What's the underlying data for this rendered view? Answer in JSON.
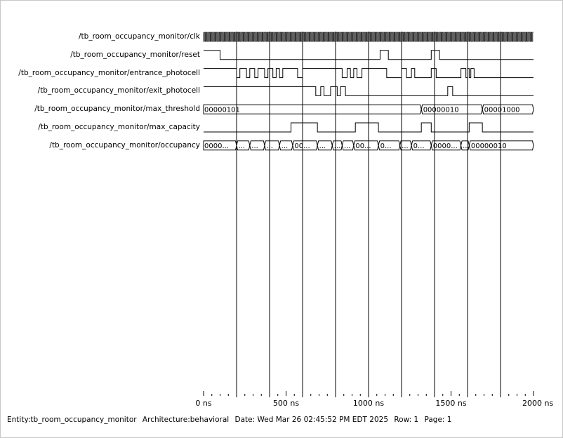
{
  "signals": [
    {
      "name": "/tb_room_occupancy_monitor/clk",
      "type": "clock",
      "period": 10
    },
    {
      "name": "/tb_room_occupancy_monitor/reset",
      "type": "bit",
      "init": 1,
      "edges": [
        100,
        1070,
        1120,
        1380,
        1430
      ]
    },
    {
      "name": "/tb_room_occupancy_monitor/entrance_photocell",
      "type": "bit",
      "init": 1,
      "edges": [
        200,
        220,
        260,
        280,
        310,
        330,
        370,
        390,
        420,
        440,
        460,
        480,
        570,
        600,
        840,
        870,
        890,
        910,
        930,
        960,
        1110,
        1200,
        1230,
        1260,
        1280,
        1380,
        1410,
        1560,
        1590,
        1600,
        1610,
        1620,
        1640
      ]
    },
    {
      "name": "/tb_room_occupancy_monitor/exit_photocell",
      "type": "bit",
      "init": 1,
      "edges": [
        680,
        710,
        730,
        770,
        810,
        830,
        860,
        1480,
        1510
      ]
    },
    {
      "name": "/tb_room_occupancy_monitor/max_threshold",
      "type": "bus",
      "segments": [
        {
          "start": 0,
          "label": "00000101"
        },
        {
          "start": 1320,
          "label": "00000010"
        },
        {
          "start": 1690,
          "label": "00001000"
        }
      ]
    },
    {
      "name": "/tb_room_occupancy_monitor/max_capacity",
      "type": "bit",
      "init": 0,
      "edges": [
        530,
        690,
        920,
        1060,
        1320,
        1380,
        1610,
        1690
      ]
    },
    {
      "name": "/tb_room_occupancy_monitor/occupancy",
      "type": "bus",
      "segments": [
        {
          "start": 0,
          "label": "0000..."
        },
        {
          "start": 200,
          "label": "..."
        },
        {
          "start": 280,
          "label": "..."
        },
        {
          "start": 370,
          "label": "..."
        },
        {
          "start": 460,
          "label": "..."
        },
        {
          "start": 540,
          "label": "00..."
        },
        {
          "start": 690,
          "label": "..."
        },
        {
          "start": 780,
          "label": "..."
        },
        {
          "start": 840,
          "label": "..."
        },
        {
          "start": 910,
          "label": "00..."
        },
        {
          "start": 1060,
          "label": "0..."
        },
        {
          "start": 1190,
          "label": "..."
        },
        {
          "start": 1260,
          "label": "0..."
        },
        {
          "start": 1380,
          "label": "0000..."
        },
        {
          "start": 1560,
          "label": "..."
        },
        {
          "start": 1610,
          "label": "00000010"
        }
      ]
    }
  ],
  "time_axis": {
    "start": 0,
    "end": 2000,
    "unit": "ns",
    "major_step": 500,
    "minor_step": 50,
    "gridline_step": 200,
    "tick_labels": [
      "0 ns",
      "500 ns",
      "1000 ns",
      "1500 ns",
      "2000 ns"
    ]
  },
  "footer": {
    "entity": "Entity:tb_room_occupancy_monitor",
    "architecture": "Architecture:behavioral",
    "date": "Date: Wed Mar 26 02:45:52 PM EDT 2025",
    "row": "Row: 1",
    "page": "Page: 1"
  },
  "colors": {
    "wave": "#000000",
    "grid": "#000000",
    "background": "#ffffff"
  }
}
